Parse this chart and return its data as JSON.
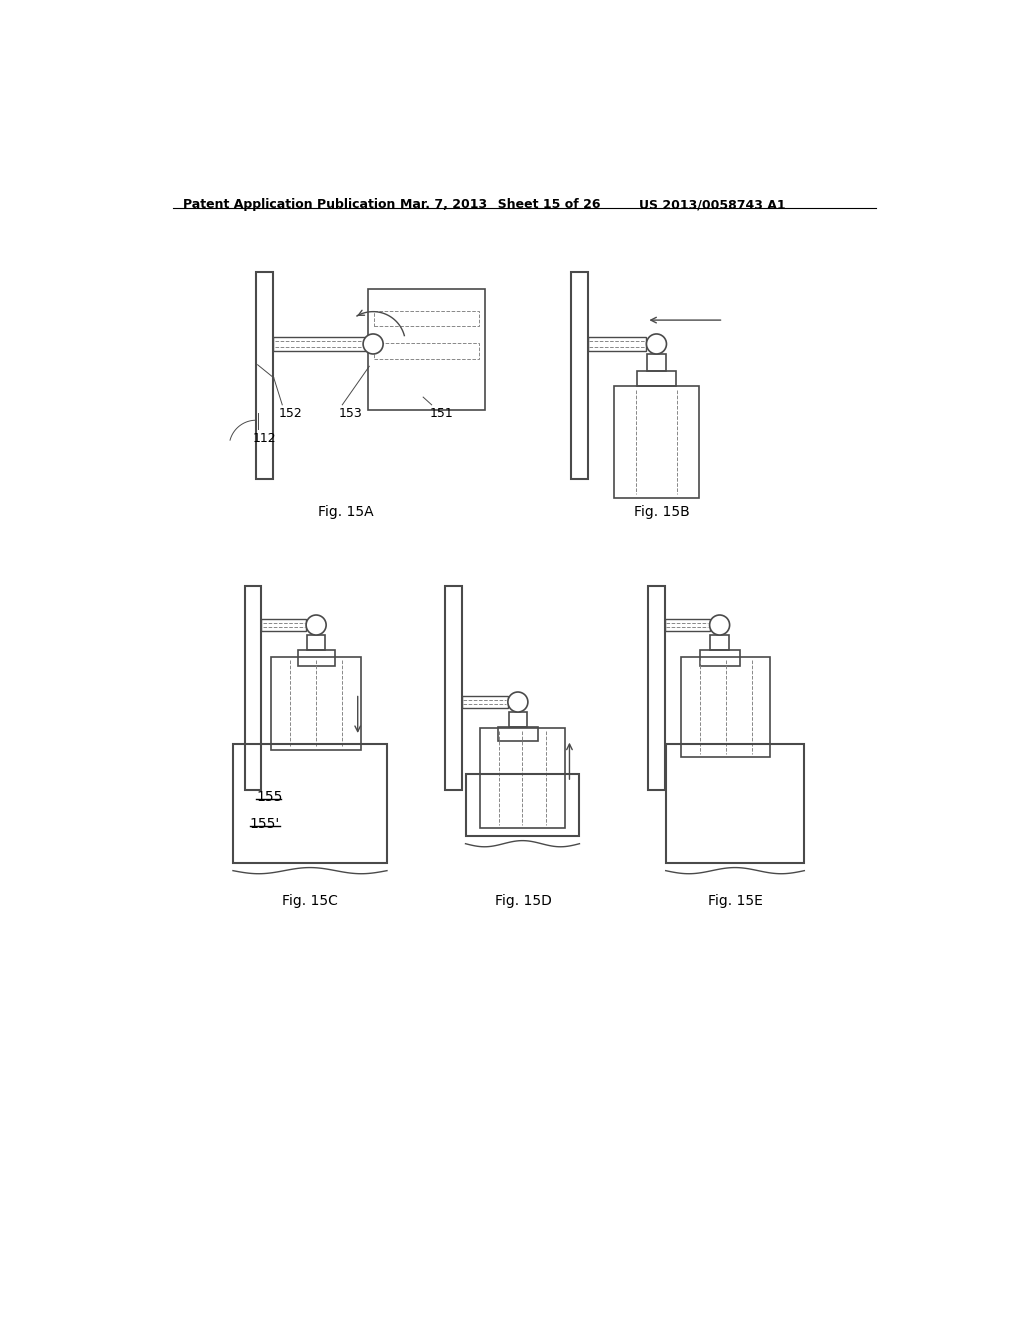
{
  "bg_color": "#ffffff",
  "lc": "#4a4a4a",
  "dc": "#888888",
  "title_left": "Patent Application Publication",
  "title_mid": "Mar. 7, 2013  Sheet 15 of 26",
  "title_right": "US 2013/0058743 A1",
  "fig_captions": [
    "Fig. 15A",
    "Fig. 15B",
    "Fig. 15C",
    "Fig. 15D",
    "Fig. 15E"
  ]
}
